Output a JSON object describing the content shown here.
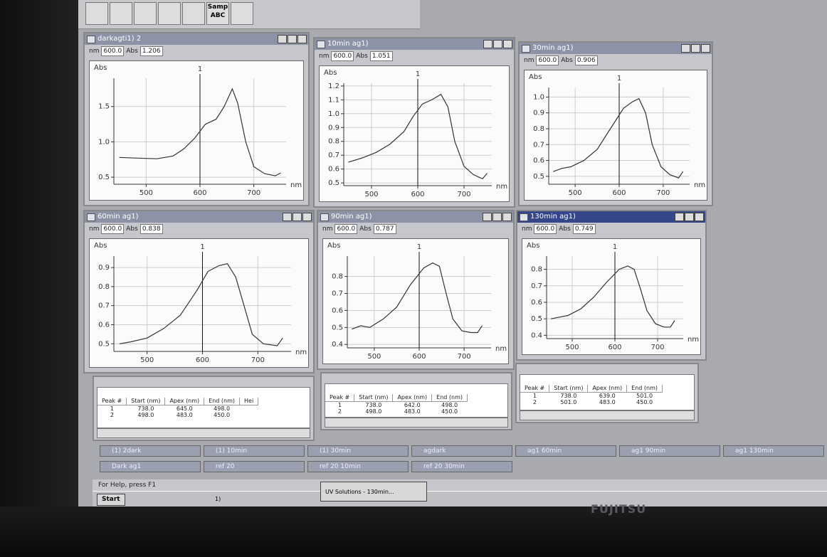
{
  "toolbar": {
    "samp": "Samp",
    "abc": "ABC"
  },
  "windows": [
    {
      "title": "darkagti1) 2",
      "nm_label": "nm",
      "nm": "600.0",
      "abs_label": "Abs",
      "abs": "1.206",
      "chart": {
        "type": "line",
        "ylabel": "Abs",
        "xlabel": "nm",
        "cursor": 600,
        "cursor_label": "1",
        "grid": true,
        "color": "#333333",
        "x": [
          450,
          480,
          520,
          550,
          570,
          590,
          610,
          630,
          645,
          660,
          670,
          685,
          700,
          720,
          740,
          750
        ],
        "values": [
          0.78,
          0.77,
          0.76,
          0.8,
          0.9,
          1.05,
          1.25,
          1.32,
          1.5,
          1.75,
          1.55,
          1.0,
          0.65,
          0.55,
          0.52,
          0.56
        ],
        "xlim": [
          440,
          760
        ],
        "xticks": [
          500,
          600,
          700
        ],
        "ylim": [
          0.4,
          1.9
        ],
        "yticks": [
          0.5,
          {
            "value": 1.0,
            "label": "1.0"
          },
          1.5
        ]
      }
    },
    {
      "title": "10min ag1)",
      "nm_label": "nm",
      "nm": "600.0",
      "abs_label": "Abs",
      "abs": "1.051",
      "chart": {
        "type": "line",
        "ylabel": "Abs",
        "xlabel": "nm",
        "cursor": 600,
        "cursor_label": "1",
        "grid": true,
        "color": "#333333",
        "x": [
          450,
          480,
          510,
          540,
          570,
          590,
          610,
          630,
          650,
          665,
          680,
          700,
          720,
          740,
          750
        ],
        "values": [
          0.65,
          0.68,
          0.72,
          0.78,
          0.87,
          0.98,
          1.07,
          1.1,
          1.14,
          1.05,
          0.8,
          0.62,
          0.56,
          0.53,
          0.57
        ],
        "xlim": [
          440,
          760
        ],
        "xticks": [
          500,
          600,
          700
        ],
        "ylim": [
          0.48,
          1.22
        ],
        "yticks": [
          0.5,
          0.6,
          0.7,
          0.8,
          0.9,
          {
            "value": 1.0,
            "label": "1.0"
          },
          1.1,
          1.2
        ]
      }
    },
    {
      "title": "30min ag1)",
      "nm_label": "nm",
      "nm": "600.0",
      "abs_label": "Abs",
      "abs": "0.906",
      "chart": {
        "type": "line",
        "ylabel": "Abs",
        "xlabel": "nm",
        "cursor": 600,
        "cursor_label": "1",
        "grid": true,
        "color": "#333333",
        "x": [
          450,
          470,
          490,
          520,
          550,
          580,
          610,
          630,
          645,
          660,
          675,
          695,
          715,
          735,
          745
        ],
        "values": [
          0.53,
          0.55,
          0.56,
          0.6,
          0.67,
          0.8,
          0.93,
          0.97,
          0.99,
          0.9,
          0.7,
          0.56,
          0.51,
          0.49,
          0.53
        ],
        "xlim": [
          440,
          760
        ],
        "xticks": [
          500,
          600,
          700
        ],
        "ylim": [
          0.45,
          1.06
        ],
        "yticks": [
          0.5,
          0.6,
          0.7,
          0.8,
          0.9,
          {
            "value": 1.0,
            "label": "1.0"
          }
        ]
      }
    },
    {
      "title": "60min ag1)",
      "nm_label": "nm",
      "nm": "600.0",
      "abs_label": "Abs",
      "abs": "0.838",
      "chart": {
        "type": "line",
        "ylabel": "Abs",
        "xlabel": "nm",
        "cursor": 600,
        "cursor_label": "1",
        "grid": true,
        "color": "#333333",
        "x": [
          450,
          470,
          500,
          530,
          560,
          590,
          610,
          630,
          645,
          660,
          675,
          690,
          710,
          735,
          745
        ],
        "values": [
          0.5,
          0.51,
          0.53,
          0.58,
          0.65,
          0.78,
          0.88,
          0.91,
          0.92,
          0.85,
          0.7,
          0.55,
          0.5,
          0.49,
          0.53
        ],
        "xlim": [
          440,
          760
        ],
        "xticks": [
          500,
          600,
          700
        ],
        "ylim": [
          0.46,
          0.96
        ],
        "yticks": [
          0.5,
          0.6,
          0.7,
          0.8,
          0.9
        ]
      }
    },
    {
      "title": "90min ag1)",
      "nm_label": "nm",
      "nm": "600.0",
      "abs_label": "Abs",
      "abs": "0.787",
      "chart": {
        "type": "line",
        "ylabel": "Abs",
        "xlabel": "nm",
        "cursor": 600,
        "cursor_label": "1",
        "grid": true,
        "color": "#333333",
        "x": [
          450,
          470,
          490,
          520,
          550,
          580,
          610,
          630,
          645,
          660,
          675,
          695,
          715,
          730,
          740
        ],
        "values": [
          0.49,
          0.51,
          0.5,
          0.55,
          0.62,
          0.75,
          0.85,
          0.88,
          0.86,
          0.7,
          0.55,
          0.48,
          0.47,
          0.47,
          0.51
        ],
        "xlim": [
          440,
          760
        ],
        "xticks": [
          500,
          600,
          700
        ],
        "ylim": [
          0.38,
          0.92
        ],
        "yticks": [
          0.4,
          0.5,
          0.6,
          0.7,
          0.8
        ]
      }
    },
    {
      "title": "130min ag1)",
      "nm_label": "nm",
      "nm": "600.0",
      "abs_label": "Abs",
      "abs": "0.749",
      "chart": {
        "type": "line",
        "ylabel": "Abs",
        "xlabel": "nm",
        "cursor": 600,
        "cursor_label": "1",
        "grid": true,
        "color": "#333333",
        "x": [
          450,
          470,
          490,
          520,
          550,
          580,
          610,
          630,
          645,
          660,
          675,
          695,
          715,
          730,
          740
        ],
        "values": [
          0.5,
          0.51,
          0.52,
          0.56,
          0.63,
          0.72,
          0.8,
          0.82,
          0.8,
          0.68,
          0.55,
          0.47,
          0.45,
          0.45,
          0.49
        ],
        "xlim": [
          440,
          760
        ],
        "xticks": [
          500,
          600,
          700
        ],
        "ylim": [
          0.38,
          0.88
        ],
        "yticks": [
          0.4,
          0.5,
          0.6,
          0.7,
          0.8
        ]
      }
    }
  ],
  "peak_tables": [
    {
      "headers": [
        "Peak #",
        "Start (nm)",
        "Apex (nm)",
        "End (nm)",
        "Hei"
      ],
      "rows": [
        [
          "1",
          "738.0",
          "645.0",
          "498.0"
        ],
        [
          "2",
          "498.0",
          "483.0",
          "450.0"
        ]
      ]
    },
    {
      "headers": [
        "Peak #",
        "Start (nm)",
        "Apex (nm)",
        "End (nm)"
      ],
      "rows": [
        [
          "1",
          "738.0",
          "642.0",
          "498.0"
        ],
        [
          "2",
          "498.0",
          "483.0",
          "450.0"
        ]
      ]
    },
    {
      "headers": [
        "Peak #",
        "Start (nm)",
        "Apex (nm)",
        "End (nm)"
      ],
      "rows": [
        [
          "1",
          "738.0",
          "639.0",
          "501.0"
        ],
        [
          "2",
          "501.0",
          "483.0",
          "450.0"
        ]
      ]
    }
  ],
  "minimized": [
    [
      "(1) 2dark",
      "(1) 10min",
      "(1) 30min",
      "agdark",
      "ag1 60min",
      "ag1 90min",
      "ag1 130min"
    ],
    [
      "Dark ag1",
      "ref 20",
      "ref 20 10min",
      "ref 20 30min"
    ]
  ],
  "status": "For Help, press F1",
  "taskbar": {
    "start": "Start",
    "doc": "1)",
    "app": "UV Solutions - 130min..."
  },
  "brand": "FUJITSU"
}
